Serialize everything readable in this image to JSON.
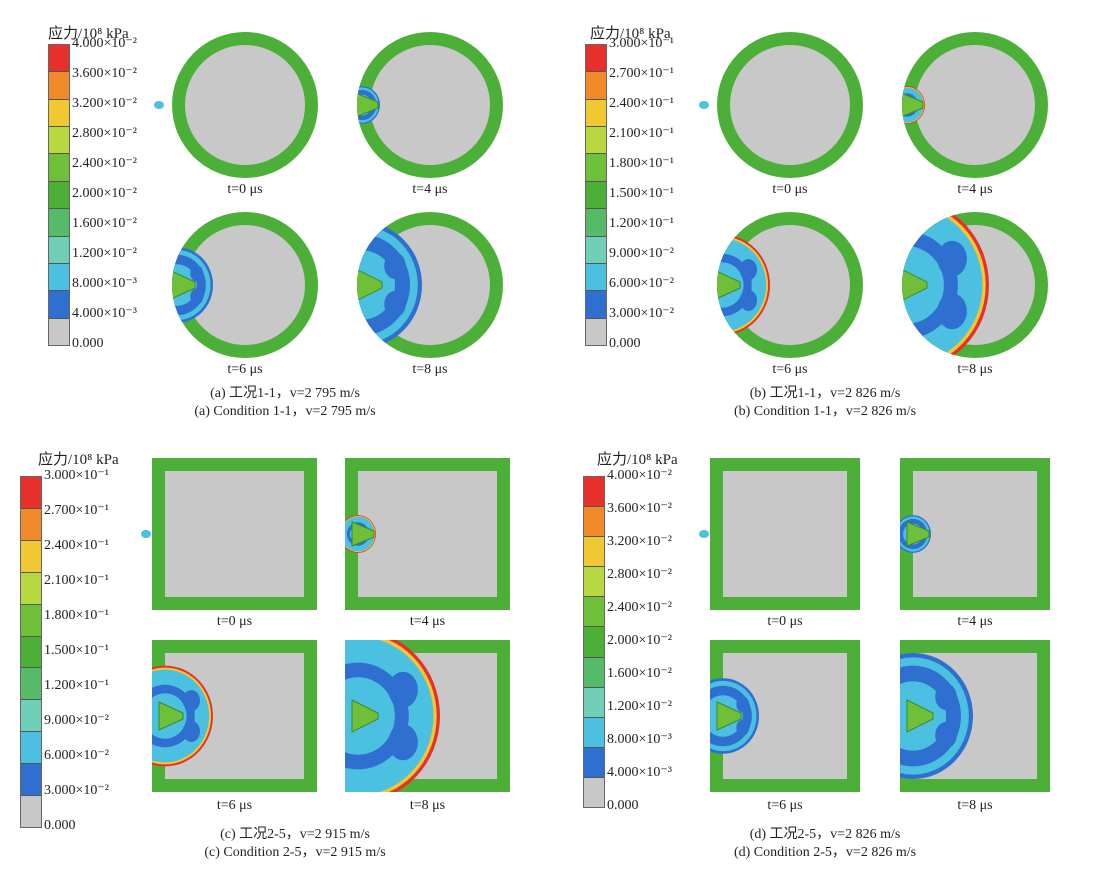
{
  "colormap": [
    "#c8c8c8",
    "#2f6fd0",
    "#4cc0e0",
    "#6fcfb8",
    "#56bb68",
    "#4caf38",
    "#6fbf38",
    "#b8d840",
    "#f0c832",
    "#f08a28",
    "#e8302a"
  ],
  "panels": [
    {
      "id": "a",
      "shape": "circle",
      "unit_label": "应力/10⁸ kPa",
      "ticks": [
        "4.000×10⁻²",
        "3.600×10⁻²",
        "3.200×10⁻²",
        "2.800×10⁻²",
        "2.400×10⁻²",
        "2.000×10⁻²",
        "1.600×10⁻²",
        "1.200×10⁻²",
        "8.000×10⁻³",
        "4.000×10⁻³",
        "0.000"
      ],
      "times": [
        "t=0 μs",
        "t=4 μs",
        "t=6 μs",
        "t=8 μs"
      ],
      "caption_cn": "(a) 工况1-1，v=2 795 m/s",
      "caption_en": "(a) Condition 1-1，v=2 795 m/s"
    },
    {
      "id": "b",
      "shape": "circle",
      "unit_label": "应力/10⁸ kPa",
      "ticks": [
        "3.000×10⁻¹",
        "2.700×10⁻¹",
        "2.400×10⁻¹",
        "2.100×10⁻¹",
        "1.800×10⁻¹",
        "1.500×10⁻¹",
        "1.200×10⁻¹",
        "9.000×10⁻²",
        "6.000×10⁻²",
        "3.000×10⁻²",
        "0.000"
      ],
      "times": [
        "t=0 μs",
        "t=4 μs",
        "t=6 μs",
        "t=8 μs"
      ],
      "caption_cn": "(b) 工况1-1，v=2 826 m/s",
      "caption_en": "(b) Condition 1-1，v=2 826 m/s"
    },
    {
      "id": "c",
      "shape": "square",
      "unit_label": "应力/10⁸ kPa",
      "ticks": [
        "3.000×10⁻¹",
        "2.700×10⁻¹",
        "2.400×10⁻¹",
        "2.100×10⁻¹",
        "1.800×10⁻¹",
        "1.500×10⁻¹",
        "1.200×10⁻¹",
        "9.000×10⁻²",
        "6.000×10⁻²",
        "3.000×10⁻²",
        "0.000"
      ],
      "times": [
        "t=0 μs",
        "t=4 μs",
        "t=6 μs",
        "t=8 μs"
      ],
      "caption_cn": "(c) 工况2-5，v=2 915 m/s",
      "caption_en": "(c) Condition 2-5，v=2 915 m/s"
    },
    {
      "id": "d",
      "shape": "square",
      "unit_label": "应力/10⁸ kPa",
      "ticks": [
        "4.000×10⁻²",
        "3.600×10⁻²",
        "3.200×10⁻²",
        "2.800×10⁻²",
        "2.400×10⁻²",
        "2.000×10⁻²",
        "1.600×10⁻²",
        "1.200×10⁻²",
        "8.000×10⁻³",
        "4.000×10⁻³",
        "0.000"
      ],
      "times": [
        "t=0 μs",
        "t=4 μs",
        "t=6 μs",
        "t=8 μs"
      ],
      "caption_cn": "(d) 工况2-5，v=2 826 m/s",
      "caption_en": "(d) Condition 2-5，v=2 826 m/s"
    }
  ]
}
